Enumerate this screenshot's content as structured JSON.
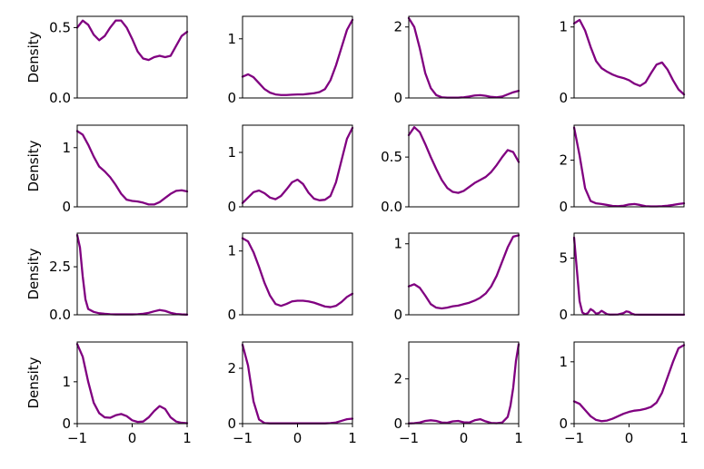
{
  "chart_data": [
    {
      "type": "line",
      "ylabel": "Density",
      "xlim": [
        -1,
        1
      ],
      "ylim": [
        0,
        0.58
      ],
      "yticks": [
        {
          "v": 0,
          "label": "0.0"
        },
        {
          "v": 0.5,
          "label": "0.5"
        }
      ],
      "x": [
        -1,
        -0.9,
        -0.8,
        -0.7,
        -0.6,
        -0.5,
        -0.4,
        -0.3,
        -0.2,
        -0.1,
        0,
        0.1,
        0.2,
        0.3,
        0.4,
        0.5,
        0.6,
        0.7,
        0.8,
        0.9,
        1
      ],
      "values": [
        0.5,
        0.55,
        0.52,
        0.45,
        0.41,
        0.44,
        0.5,
        0.55,
        0.55,
        0.5,
        0.42,
        0.33,
        0.28,
        0.27,
        0.29,
        0.3,
        0.29,
        0.3,
        0.37,
        0.44,
        0.47
      ]
    },
    {
      "type": "line",
      "ylabel": "",
      "xlim": [
        -1,
        1
      ],
      "ylim": [
        0,
        1.38
      ],
      "yticks": [
        {
          "v": 0,
          "label": "0"
        },
        {
          "v": 1,
          "label": "1"
        }
      ],
      "x": [
        -1,
        -0.9,
        -0.8,
        -0.7,
        -0.6,
        -0.5,
        -0.4,
        -0.3,
        -0.2,
        -0.1,
        0,
        0.1,
        0.2,
        0.3,
        0.4,
        0.5,
        0.6,
        0.7,
        0.8,
        0.9,
        1
      ],
      "values": [
        0.36,
        0.4,
        0.35,
        0.25,
        0.15,
        0.09,
        0.06,
        0.05,
        0.05,
        0.055,
        0.06,
        0.06,
        0.07,
        0.08,
        0.1,
        0.15,
        0.3,
        0.55,
        0.85,
        1.15,
        1.32
      ]
    },
    {
      "type": "line",
      "ylabel": "",
      "xlim": [
        -1,
        1
      ],
      "ylim": [
        0,
        2.3
      ],
      "yticks": [
        {
          "v": 0,
          "label": "0"
        },
        {
          "v": 2,
          "label": "2"
        }
      ],
      "x": [
        -1,
        -0.9,
        -0.8,
        -0.7,
        -0.6,
        -0.5,
        -0.4,
        -0.3,
        -0.2,
        -0.1,
        0,
        0.1,
        0.2,
        0.3,
        0.4,
        0.5,
        0.6,
        0.7,
        0.8,
        0.9,
        1
      ],
      "values": [
        2.25,
        2.0,
        1.4,
        0.7,
        0.28,
        0.08,
        0.02,
        0.01,
        0.01,
        0.01,
        0.02,
        0.04,
        0.07,
        0.08,
        0.06,
        0.03,
        0.02,
        0.04,
        0.1,
        0.16,
        0.2
      ]
    },
    {
      "type": "line",
      "ylabel": "",
      "xlim": [
        -1,
        1
      ],
      "ylim": [
        0,
        1.15
      ],
      "yticks": [
        {
          "v": 0,
          "label": "0"
        },
        {
          "v": 1,
          "label": "1"
        }
      ],
      "x": [
        -1,
        -0.9,
        -0.8,
        -0.7,
        -0.6,
        -0.5,
        -0.4,
        -0.3,
        -0.2,
        -0.1,
        0,
        0.1,
        0.2,
        0.3,
        0.4,
        0.5,
        0.6,
        0.7,
        0.8,
        0.9,
        1
      ],
      "values": [
        1.05,
        1.1,
        0.95,
        0.72,
        0.52,
        0.42,
        0.37,
        0.33,
        0.3,
        0.28,
        0.25,
        0.2,
        0.17,
        0.22,
        0.35,
        0.47,
        0.5,
        0.4,
        0.25,
        0.12,
        0.05
      ]
    },
    {
      "type": "line",
      "ylabel": "Density",
      "xlim": [
        -1,
        1
      ],
      "ylim": [
        0,
        1.38
      ],
      "yticks": [
        {
          "v": 0,
          "label": "0"
        },
        {
          "v": 1,
          "label": "1"
        }
      ],
      "x": [
        -1,
        -0.9,
        -0.8,
        -0.7,
        -0.6,
        -0.5,
        -0.4,
        -0.3,
        -0.2,
        -0.1,
        0,
        0.1,
        0.2,
        0.3,
        0.4,
        0.5,
        0.6,
        0.7,
        0.8,
        0.9,
        1
      ],
      "values": [
        1.28,
        1.22,
        1.05,
        0.85,
        0.68,
        0.6,
        0.5,
        0.37,
        0.22,
        0.12,
        0.1,
        0.09,
        0.07,
        0.04,
        0.04,
        0.08,
        0.15,
        0.22,
        0.27,
        0.28,
        0.26
      ]
    },
    {
      "type": "line",
      "ylabel": "",
      "xlim": [
        -1,
        1
      ],
      "ylim": [
        0,
        1.5
      ],
      "yticks": [
        {
          "v": 0,
          "label": "0"
        },
        {
          "v": 1,
          "label": "1"
        }
      ],
      "x": [
        -1,
        -0.9,
        -0.8,
        -0.7,
        -0.6,
        -0.5,
        -0.4,
        -0.3,
        -0.2,
        -0.1,
        0,
        0.1,
        0.2,
        0.3,
        0.4,
        0.5,
        0.6,
        0.7,
        0.8,
        0.9,
        1
      ],
      "values": [
        0.07,
        0.17,
        0.27,
        0.3,
        0.25,
        0.17,
        0.14,
        0.2,
        0.32,
        0.45,
        0.5,
        0.42,
        0.26,
        0.15,
        0.12,
        0.13,
        0.2,
        0.45,
        0.85,
        1.25,
        1.45
      ]
    },
    {
      "type": "line",
      "ylabel": "",
      "xlim": [
        -1,
        1
      ],
      "ylim": [
        0,
        0.82
      ],
      "yticks": [
        {
          "v": 0,
          "label": "0.0"
        },
        {
          "v": 0.5,
          "label": "0.5"
        }
      ],
      "x": [
        -1,
        -0.9,
        -0.8,
        -0.7,
        -0.6,
        -0.5,
        -0.4,
        -0.3,
        -0.2,
        -0.1,
        0,
        0.1,
        0.2,
        0.3,
        0.4,
        0.5,
        0.6,
        0.7,
        0.8,
        0.9,
        1
      ],
      "values": [
        0.72,
        0.8,
        0.75,
        0.63,
        0.5,
        0.38,
        0.27,
        0.19,
        0.15,
        0.14,
        0.16,
        0.2,
        0.24,
        0.27,
        0.3,
        0.35,
        0.42,
        0.5,
        0.57,
        0.55,
        0.45
      ]
    },
    {
      "type": "line",
      "ylabel": "",
      "xlim": [
        -1,
        1
      ],
      "ylim": [
        0,
        3.5
      ],
      "yticks": [
        {
          "v": 0,
          "label": "0"
        },
        {
          "v": 2,
          "label": "2"
        }
      ],
      "x": [
        -1,
        -0.9,
        -0.8,
        -0.7,
        -0.6,
        -0.5,
        -0.4,
        -0.3,
        -0.2,
        -0.1,
        0,
        0.1,
        0.2,
        0.3,
        0.4,
        0.5,
        0.6,
        0.7,
        0.8,
        0.9,
        1
      ],
      "values": [
        3.4,
        2.2,
        0.8,
        0.25,
        0.15,
        0.12,
        0.08,
        0.04,
        0.03,
        0.05,
        0.1,
        0.12,
        0.08,
        0.03,
        0.02,
        0.02,
        0.03,
        0.05,
        0.08,
        0.12,
        0.15
      ]
    },
    {
      "type": "line",
      "ylabel": "Density",
      "xlim": [
        -1,
        1
      ],
      "ylim": [
        0,
        4.25
      ],
      "yticks": [
        {
          "v": 0,
          "label": "0.0"
        },
        {
          "v": 2.5,
          "label": "2.5"
        }
      ],
      "x": [
        -1,
        -0.95,
        -0.9,
        -0.85,
        -0.8,
        -0.7,
        -0.6,
        -0.5,
        -0.4,
        -0.3,
        -0.2,
        -0.1,
        0,
        0.1,
        0.2,
        0.3,
        0.4,
        0.5,
        0.6,
        0.7,
        0.8,
        0.9,
        1
      ],
      "values": [
        4.15,
        3.5,
        2.0,
        0.8,
        0.3,
        0.15,
        0.08,
        0.05,
        0.03,
        0.02,
        0.02,
        0.02,
        0.02,
        0.03,
        0.05,
        0.1,
        0.18,
        0.25,
        0.2,
        0.1,
        0.04,
        0.02,
        0.01
      ]
    },
    {
      "type": "line",
      "ylabel": "",
      "xlim": [
        -1,
        1
      ],
      "ylim": [
        0,
        1.28
      ],
      "yticks": [
        {
          "v": 0,
          "label": "0"
        },
        {
          "v": 1,
          "label": "1"
        }
      ],
      "x": [
        -1,
        -0.9,
        -0.8,
        -0.7,
        -0.6,
        -0.5,
        -0.4,
        -0.3,
        -0.2,
        -0.1,
        0,
        0.1,
        0.2,
        0.3,
        0.4,
        0.5,
        0.6,
        0.7,
        0.8,
        0.9,
        1
      ],
      "values": [
        1.2,
        1.15,
        0.98,
        0.75,
        0.5,
        0.3,
        0.17,
        0.14,
        0.17,
        0.21,
        0.22,
        0.22,
        0.21,
        0.19,
        0.16,
        0.13,
        0.12,
        0.14,
        0.2,
        0.28,
        0.33
      ]
    },
    {
      "type": "line",
      "ylabel": "",
      "xlim": [
        -1,
        1
      ],
      "ylim": [
        0,
        1.15
      ],
      "yticks": [
        {
          "v": 0,
          "label": "0"
        },
        {
          "v": 1,
          "label": "1"
        }
      ],
      "x": [
        -1,
        -0.9,
        -0.8,
        -0.7,
        -0.6,
        -0.5,
        -0.4,
        -0.3,
        -0.2,
        -0.1,
        0,
        0.1,
        0.2,
        0.3,
        0.4,
        0.5,
        0.6,
        0.7,
        0.8,
        0.9,
        1
      ],
      "values": [
        0.4,
        0.43,
        0.38,
        0.27,
        0.15,
        0.1,
        0.09,
        0.1,
        0.12,
        0.13,
        0.15,
        0.17,
        0.2,
        0.24,
        0.3,
        0.4,
        0.55,
        0.75,
        0.95,
        1.1,
        1.12
      ]
    },
    {
      "type": "line",
      "ylabel": "",
      "xlim": [
        -1,
        1
      ],
      "ylim": [
        0,
        7.2
      ],
      "yticks": [
        {
          "v": 0,
          "label": "0"
        },
        {
          "v": 5,
          "label": "5"
        }
      ],
      "x": [
        -1,
        -0.95,
        -0.9,
        -0.85,
        -0.8,
        -0.75,
        -0.7,
        -0.65,
        -0.6,
        -0.55,
        -0.5,
        -0.45,
        -0.4,
        -0.35,
        -0.3,
        -0.2,
        -0.1,
        -0.05,
        0,
        0.05,
        0.1,
        0.2,
        0.3,
        0.4,
        0.5,
        0.6,
        0.7,
        0.8,
        0.9,
        1
      ],
      "values": [
        6.8,
        4.0,
        1.2,
        0.2,
        0.05,
        0.15,
        0.5,
        0.35,
        0.1,
        0.15,
        0.35,
        0.2,
        0.05,
        0.02,
        0.02,
        0.03,
        0.15,
        0.3,
        0.25,
        0.1,
        0.02,
        0.01,
        0.01,
        0.01,
        0.01,
        0.01,
        0.01,
        0.01,
        0.01,
        0.01
      ]
    },
    {
      "type": "line",
      "ylabel": "Density",
      "xlim": [
        -1,
        1
      ],
      "ylim": [
        0,
        1.95
      ],
      "yticks": [
        {
          "v": 0,
          "label": "0"
        },
        {
          "v": 1,
          "label": "1"
        }
      ],
      "xticks": [
        {
          "v": -1,
          "label": "−1"
        },
        {
          "v": 0,
          "label": "0"
        },
        {
          "v": 1,
          "label": "1"
        }
      ],
      "x": [
        -1,
        -0.9,
        -0.8,
        -0.7,
        -0.6,
        -0.5,
        -0.4,
        -0.3,
        -0.2,
        -0.1,
        0,
        0.1,
        0.2,
        0.3,
        0.4,
        0.5,
        0.6,
        0.7,
        0.8,
        0.9,
        1
      ],
      "values": [
        1.9,
        1.6,
        1.0,
        0.5,
        0.25,
        0.15,
        0.14,
        0.2,
        0.23,
        0.18,
        0.08,
        0.04,
        0.05,
        0.15,
        0.3,
        0.42,
        0.35,
        0.15,
        0.05,
        0.02,
        0.01
      ]
    },
    {
      "type": "line",
      "ylabel": "",
      "xlim": [
        -1,
        1
      ],
      "ylim": [
        0,
        2.95
      ],
      "yticks": [
        {
          "v": 0,
          "label": "0"
        },
        {
          "v": 2,
          "label": "2"
        }
      ],
      "xticks": [
        {
          "v": -1,
          "label": "−1"
        },
        {
          "v": 0,
          "label": "0"
        },
        {
          "v": 1,
          "label": "1"
        }
      ],
      "x": [
        -1,
        -0.9,
        -0.8,
        -0.7,
        -0.6,
        -0.5,
        -0.4,
        -0.3,
        -0.2,
        -0.1,
        0,
        0.1,
        0.2,
        0.3,
        0.4,
        0.5,
        0.6,
        0.7,
        0.8,
        0.9,
        1
      ],
      "values": [
        2.85,
        2.1,
        0.8,
        0.15,
        0.02,
        0.01,
        0.01,
        0.01,
        0.01,
        0.01,
        0.01,
        0.01,
        0.01,
        0.01,
        0.01,
        0.01,
        0.02,
        0.04,
        0.1,
        0.16,
        0.18
      ]
    },
    {
      "type": "line",
      "ylabel": "",
      "xlim": [
        -1,
        1
      ],
      "ylim": [
        0,
        3.65
      ],
      "yticks": [
        {
          "v": 0,
          "label": "0"
        },
        {
          "v": 2,
          "label": "2"
        }
      ],
      "xticks": [
        {
          "v": -1,
          "label": "−1"
        },
        {
          "v": 0,
          "label": "0"
        },
        {
          "v": 1,
          "label": "1"
        }
      ],
      "x": [
        -1,
        -0.9,
        -0.8,
        -0.7,
        -0.6,
        -0.5,
        -0.4,
        -0.3,
        -0.2,
        -0.1,
        0,
        0.1,
        0.2,
        0.3,
        0.4,
        0.5,
        0.6,
        0.7,
        0.8,
        0.85,
        0.9,
        0.95,
        1
      ],
      "values": [
        0.01,
        0.02,
        0.05,
        0.12,
        0.15,
        0.12,
        0.05,
        0.04,
        0.1,
        0.12,
        0.06,
        0.05,
        0.15,
        0.2,
        0.1,
        0.03,
        0.02,
        0.05,
        0.3,
        0.8,
        1.6,
        2.8,
        3.55
      ]
    },
    {
      "type": "line",
      "ylabel": "",
      "xlim": [
        -1,
        1
      ],
      "ylim": [
        0,
        1.32
      ],
      "yticks": [
        {
          "v": 0,
          "label": "0"
        },
        {
          "v": 1,
          "label": "1"
        }
      ],
      "xticks": [
        {
          "v": -1,
          "label": "−1"
        },
        {
          "v": 0,
          "label": "0"
        },
        {
          "v": 1,
          "label": "1"
        }
      ],
      "x": [
        -1,
        -0.9,
        -0.8,
        -0.7,
        -0.6,
        -0.5,
        -0.4,
        -0.3,
        -0.2,
        -0.1,
        0,
        0.1,
        0.2,
        0.3,
        0.4,
        0.5,
        0.6,
        0.7,
        0.8,
        0.9,
        1
      ],
      "values": [
        0.36,
        0.32,
        0.22,
        0.12,
        0.06,
        0.04,
        0.05,
        0.08,
        0.12,
        0.16,
        0.19,
        0.21,
        0.22,
        0.24,
        0.27,
        0.34,
        0.5,
        0.75,
        1.0,
        1.22,
        1.27
      ]
    }
  ],
  "colors": {
    "line": "#800080",
    "axes": "#000000"
  }
}
